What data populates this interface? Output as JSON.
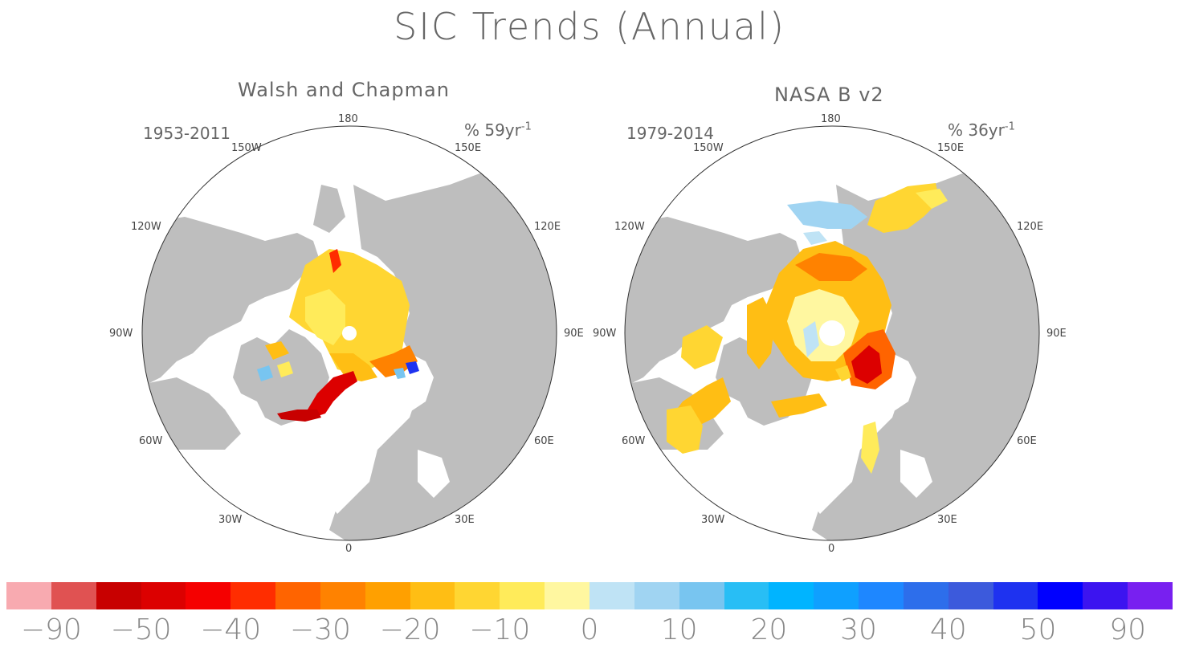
{
  "title": "SIC Trends (Annual)",
  "left": {
    "name": "Walsh and Chapman",
    "period": "1953-2011",
    "units": "% 59yr",
    "units_sup": "-1"
  },
  "right": {
    "name": "NASA B v2",
    "period": "1979-2014",
    "units": "% 36yr",
    "units_sup": "-1"
  },
  "lon_labels": {
    "l180": "180",
    "w150": "150W",
    "e150": "150E",
    "w120": "120W",
    "e120": "120E",
    "w90": "90W",
    "e90": "90E",
    "w60": "60W",
    "e60": "60E",
    "w30": "30W",
    "e30": "30E",
    "l0": "0"
  },
  "colorbar": {
    "colors": [
      "#f8aab0",
      "#e05252",
      "#c80000",
      "#dc0000",
      "#f50000",
      "#ff2d00",
      "#ff6400",
      "#ff8200",
      "#ffa000",
      "#ffbe14",
      "#ffd632",
      "#ffeb5a",
      "#fff7a0",
      "#bfe3f5",
      "#a0d4f2",
      "#78c5f0",
      "#28bef5",
      "#00b4ff",
      "#0fa0ff",
      "#1e87ff",
      "#2d6eeb",
      "#3c5adc",
      "#1e32f0",
      "#0000ff",
      "#3c14f0",
      "#7820f0"
    ],
    "ticks": [
      "-90",
      "-50",
      "-40",
      "-30",
      "-20",
      "-10",
      "0",
      "10",
      "20",
      "30",
      "40",
      "50",
      "90"
    ]
  },
  "colors": {
    "land": "#bebebe",
    "ocean": "#ffffff"
  }
}
